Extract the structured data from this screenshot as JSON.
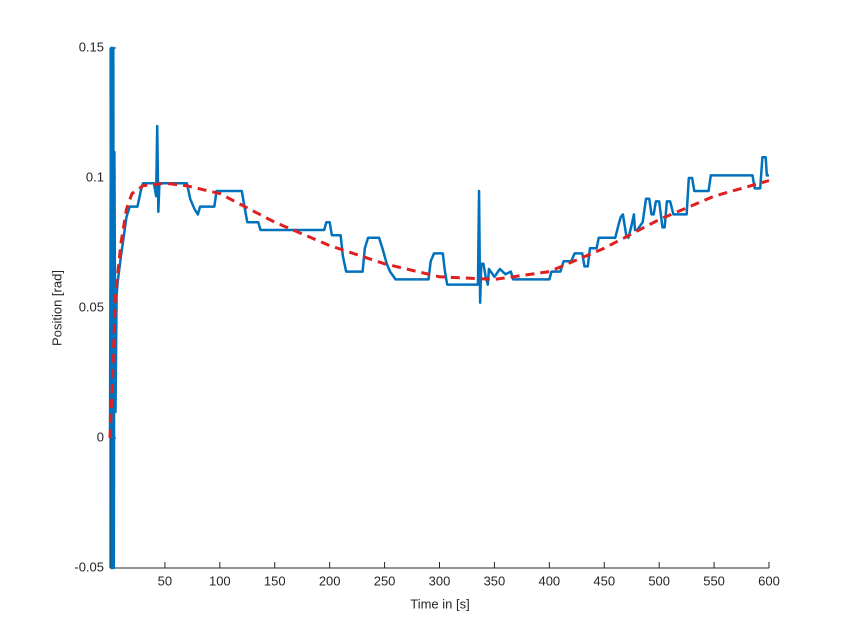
{
  "chart_data": {
    "type": "line",
    "x_label": "Time in [s]",
    "y_label": "Position [rad]",
    "xlim": [
      0,
      600
    ],
    "xticks": [
      50,
      100,
      150,
      200,
      250,
      300,
      350,
      400,
      450,
      500,
      550,
      600
    ],
    "ylim": [
      -0.05,
      0.15
    ],
    "yticks": [
      -0.05,
      0,
      0.05,
      0.1,
      0.15
    ],
    "grid": false,
    "series": [
      {
        "color": "#0072bd",
        "dashed": false,
        "x": [
          0,
          1,
          1.5,
          2,
          2.5,
          3,
          3.5,
          4,
          5,
          6,
          7,
          10,
          15,
          18,
          25,
          28,
          30,
          40,
          42,
          43,
          44,
          45,
          70,
          73,
          77,
          80,
          82,
          95,
          97,
          120,
          122,
          125,
          135,
          137,
          195,
          197,
          200,
          202,
          210,
          212,
          215,
          230,
          232,
          235,
          245,
          248,
          252,
          255,
          260,
          290,
          292,
          295,
          303,
          305,
          307,
          335,
          336,
          337,
          338,
          340,
          342,
          344,
          345,
          350,
          355,
          360,
          365,
          367,
          400,
          402,
          410,
          413,
          420,
          423,
          430,
          432,
          435,
          437,
          443,
          445,
          460,
          463,
          465,
          467,
          470,
          472,
          475,
          477,
          478,
          480,
          485,
          488,
          491,
          493,
          495,
          497,
          500,
          503,
          505,
          507,
          510,
          513,
          525,
          527,
          530,
          532,
          545,
          547,
          585,
          587,
          592,
          594,
          597,
          598,
          600
        ],
        "values": [
          0,
          0.15,
          -0.05,
          0.15,
          -0.05,
          0.15,
          -0.05,
          0.11,
          0.01,
          0.055,
          0.06,
          0.07,
          0.085,
          0.089,
          0.089,
          0.095,
          0.098,
          0.098,
          0.093,
          0.12,
          0.087,
          0.098,
          0.098,
          0.092,
          0.088,
          0.086,
          0.089,
          0.089,
          0.095,
          0.095,
          0.09,
          0.083,
          0.083,
          0.08,
          0.08,
          0.083,
          0.083,
          0.078,
          0.078,
          0.07,
          0.064,
          0.064,
          0.073,
          0.077,
          0.077,
          0.073,
          0.067,
          0.064,
          0.061,
          0.061,
          0.068,
          0.071,
          0.071,
          0.064,
          0.059,
          0.059,
          0.095,
          0.052,
          0.067,
          0.067,
          0.062,
          0.059,
          0.065,
          0.062,
          0.065,
          0.063,
          0.064,
          0.061,
          0.061,
          0.064,
          0.064,
          0.068,
          0.068,
          0.071,
          0.071,
          0.066,
          0.066,
          0.073,
          0.073,
          0.077,
          0.077,
          0.082,
          0.085,
          0.086,
          0.078,
          0.077,
          0.082,
          0.086,
          0.08,
          0.08,
          0.083,
          0.092,
          0.092,
          0.086,
          0.086,
          0.091,
          0.091,
          0.081,
          0.081,
          0.091,
          0.091,
          0.086,
          0.086,
          0.1,
          0.1,
          0.095,
          0.095,
          0.101,
          0.101,
          0.096,
          0.096,
          0.108,
          0.108,
          0.101,
          0.101
        ]
      },
      {
        "color": "#e02020",
        "dashed": true,
        "x": [
          0,
          2,
          5,
          10,
          15,
          20,
          30,
          50,
          70,
          100,
          150,
          200,
          250,
          300,
          350,
          400,
          450,
          500,
          550,
          600
        ],
        "values": [
          0,
          0.02,
          0.055,
          0.075,
          0.088,
          0.094,
          0.097,
          0.098,
          0.097,
          0.094,
          0.083,
          0.074,
          0.067,
          0.062,
          0.061,
          0.064,
          0.073,
          0.084,
          0.093,
          0.099
        ]
      }
    ]
  }
}
